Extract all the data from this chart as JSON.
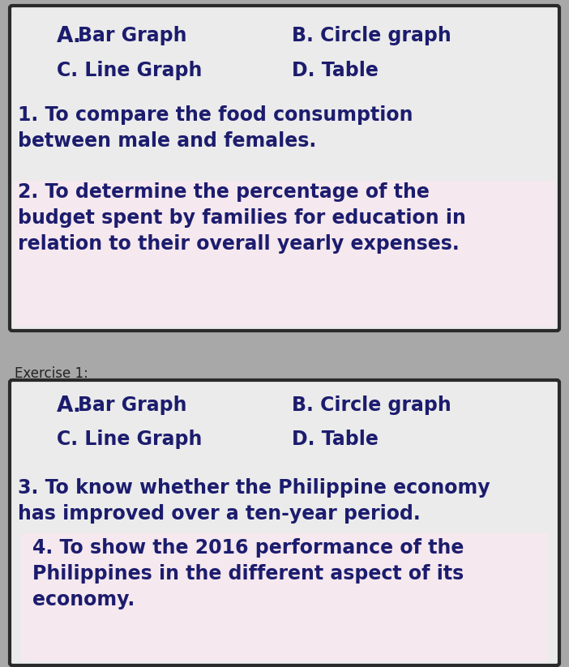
{
  "fig_width": 7.02,
  "fig_height": 8.23,
  "dpi": 100,
  "bg_color": "#a8a8a8",
  "top_box_bg": "#ebebeb",
  "top_box_border": "#2a2a2a",
  "bottom_section_bg": "#888888",
  "bottom_box_bg": "#ebebeb",
  "bottom_box_border": "#2a2a2a",
  "exercise_label_color": "#222222",
  "text_color": "#1c1c6e",
  "exercise_label": "Exercise 1:",
  "opt_A": "A.",
  "opt_A_rest": " Bar Graph",
  "opt_B": "B. Circle graph",
  "opt_C": "C. Line Graph",
  "opt_D": "D. Table",
  "q1_line1": "1. To compare the food consumption",
  "q1_line2": "between male and females.",
  "q2_line1": "2. To determine the percentage of the",
  "q2_line2": "budget spent by families for education in",
  "q2_line3": "relation to their overall yearly expenses.",
  "q3_line1": "3. To know whether the Philippine economy",
  "q3_line2": "has improved over a ten-year period.",
  "q4_line1": "4. To show the 2016 performance of the",
  "q4_line2": "Philippines in the different aspect of its",
  "q4_line3": "economy.",
  "opt_fontsize": 17,
  "q_fontsize": 17,
  "exercise_fontsize": 12,
  "q4_indent": 0.05,
  "pink_bg": "#f5e8ee"
}
